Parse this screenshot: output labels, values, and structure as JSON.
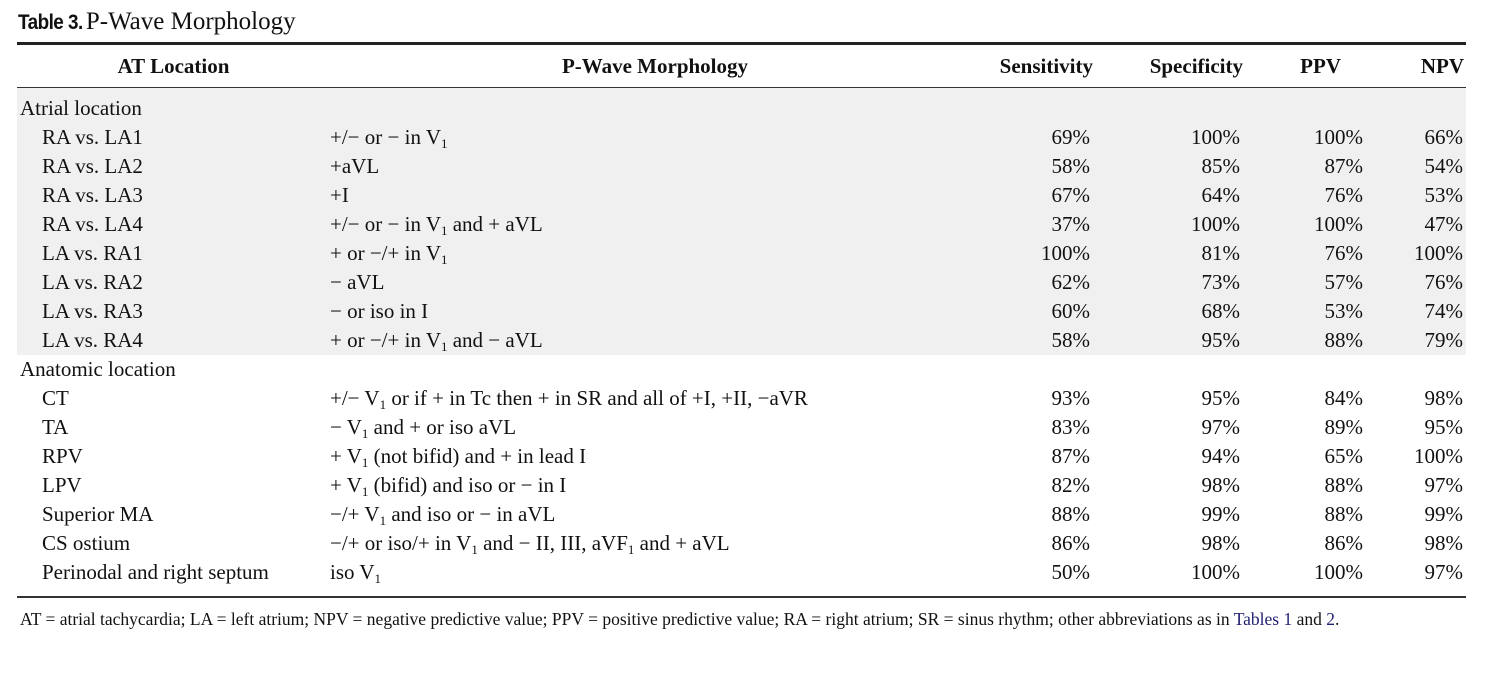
{
  "caption": {
    "label": "Table 3.",
    "title": "P-Wave Morphology"
  },
  "headers": [
    "AT Location",
    "P-Wave Morphology",
    "Sensitivity",
    "Specificity",
    "PPV",
    "NPV"
  ],
  "sections": [
    {
      "label": "Atrial location",
      "shaded": true,
      "rows": [
        {
          "location": "RA vs. LA1",
          "morphology": "+/− or − in V_1",
          "sensitivity": "69%",
          "specificity": "100%",
          "ppv": "100%",
          "npv": "66%"
        },
        {
          "location": "RA vs. LA2",
          "morphology": "+aVL",
          "sensitivity": "58%",
          "specificity": "85%",
          "ppv": "87%",
          "npv": "54%"
        },
        {
          "location": "RA vs. LA3",
          "morphology": "+I",
          "sensitivity": "67%",
          "specificity": "64%",
          "ppv": "76%",
          "npv": "53%"
        },
        {
          "location": "RA vs. LA4",
          "morphology": "+/− or − in V_1 and + aVL",
          "sensitivity": "37%",
          "specificity": "100%",
          "ppv": "100%",
          "npv": "47%"
        },
        {
          "location": "LA vs. RA1",
          "morphology": "+ or −/+ in V_1",
          "sensitivity": "100%",
          "specificity": "81%",
          "ppv": "76%",
          "npv": "100%"
        },
        {
          "location": "LA vs. RA2",
          "morphology": "− aVL",
          "sensitivity": "62%",
          "specificity": "73%",
          "ppv": "57%",
          "npv": "76%"
        },
        {
          "location": "LA vs. RA3",
          "morphology": "− or iso in I",
          "sensitivity": "60%",
          "specificity": "68%",
          "ppv": "53%",
          "npv": "74%"
        },
        {
          "location": "LA vs. RA4",
          "morphology": "+ or −/+ in V_1 and − aVL",
          "sensitivity": "58%",
          "specificity": "95%",
          "ppv": "88%",
          "npv": "79%"
        }
      ]
    },
    {
      "label": "Anatomic location",
      "shaded": false,
      "rows": [
        {
          "location": "CT",
          "morphology": "+/− V_1 or if + in Tc then + in SR and all of +I, +II, −aVR",
          "sensitivity": "93%",
          "specificity": "95%",
          "ppv": "84%",
          "npv": "98%"
        },
        {
          "location": "TA",
          "morphology": "− V_1 and + or iso aVL",
          "sensitivity": "83%",
          "specificity": "97%",
          "ppv": "89%",
          "npv": "95%"
        },
        {
          "location": "RPV",
          "morphology": "+ V_1 (not bifid) and + in lead I",
          "sensitivity": "87%",
          "specificity": "94%",
          "ppv": "65%",
          "npv": "100%"
        },
        {
          "location": "LPV",
          "morphology": "+ V_1 (bifid) and iso or − in I",
          "sensitivity": "82%",
          "specificity": "98%",
          "ppv": "88%",
          "npv": "97%"
        },
        {
          "location": "Superior MA",
          "morphology": "−/+ V_1 and iso or − in aVL",
          "sensitivity": "88%",
          "specificity": "99%",
          "ppv": "88%",
          "npv": "99%"
        },
        {
          "location": "CS ostium",
          "morphology": "−/+ or iso/+ in V_1 and − II, III, aVF_1 and + aVL",
          "sensitivity": "86%",
          "specificity": "98%",
          "ppv": "86%",
          "npv": "98%"
        },
        {
          "location": "Perinodal and right septum",
          "morphology": "iso V_1",
          "sensitivity": "50%",
          "specificity": "100%",
          "ppv": "100%",
          "npv": "97%"
        }
      ]
    }
  ],
  "footnote": {
    "text": "AT = atrial tachycardia; LA = left atrium; NPV = negative predictive value; PPV = positive predictive value; RA = right atrium; SR = sinus rhythm; other abbreviations as in ",
    "link1": "Tables 1",
    "mid": " and ",
    "link2": "2",
    "end": "."
  },
  "colors": {
    "shade": "#f0f0f0",
    "link": "#1e1e72"
  }
}
